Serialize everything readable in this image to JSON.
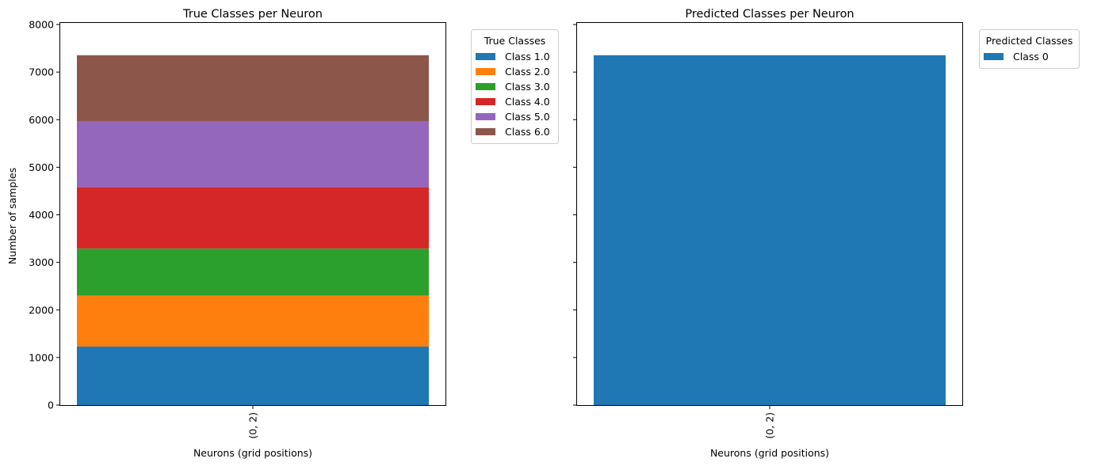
{
  "chart_data": [
    {
      "type": "bar",
      "stacked": true,
      "title": "True Classes per Neuron",
      "xlabel": "Neurons (grid positions)",
      "ylabel": "Number of samples",
      "categories": [
        "(0, 2)"
      ],
      "ylim": [
        0,
        8050
      ],
      "yticks": [
        0,
        1000,
        2000,
        3000,
        4000,
        5000,
        6000,
        7000,
        8000
      ],
      "ytick_labels": [
        "0",
        "1000",
        "2000",
        "3000",
        "4000",
        "5000",
        "6000",
        "7000",
        "8000"
      ],
      "grid": false,
      "legend": {
        "title": "True Classes",
        "placement": "outside upper right"
      },
      "series": [
        {
          "name": "Class 1.0",
          "color": "#1f77b4",
          "values": [
            1230
          ]
        },
        {
          "name": "Class 2.0",
          "color": "#ff7f0e",
          "values": [
            1070
          ]
        },
        {
          "name": "Class 3.0",
          "color": "#2ca02c",
          "values": [
            990
          ]
        },
        {
          "name": "Class 4.0",
          "color": "#d62728",
          "values": [
            1290
          ]
        },
        {
          "name": "Class 5.0",
          "color": "#9467bd",
          "values": [
            1380
          ]
        },
        {
          "name": "Class 6.0",
          "color": "#8c564b",
          "values": [
            1395
          ]
        }
      ]
    },
    {
      "type": "bar",
      "stacked": true,
      "title": "Predicted Classes per Neuron",
      "xlabel": "Neurons (grid positions)",
      "ylabel": "",
      "categories": [
        "(0, 2)"
      ],
      "ylim": [
        0,
        8050
      ],
      "yticks": [
        0,
        1000,
        2000,
        3000,
        4000,
        5000,
        6000,
        7000,
        8000
      ],
      "ytick_labels": [],
      "shared_y": true,
      "grid": false,
      "legend": {
        "title": "Predicted Classes",
        "placement": "outside upper right"
      },
      "series": [
        {
          "name": "Class 0",
          "color": "#1f77b4",
          "values": [
            7355
          ]
        }
      ]
    }
  ]
}
